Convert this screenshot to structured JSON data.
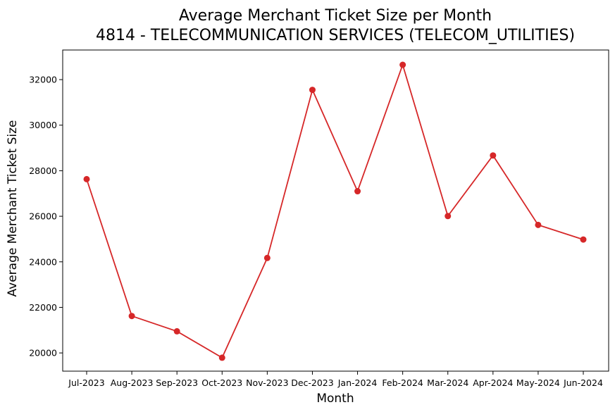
{
  "chart_data": {
    "type": "line",
    "title_line1": "Average Merchant Ticket Size per Month",
    "title_line2": "4814 - TELECOMMUNICATION SERVICES (TELECOM_UTILITIES)",
    "xlabel": "Month",
    "ylabel": "Average Merchant Ticket Size",
    "categories": [
      "Jul-2023",
      "Aug-2023",
      "Sep-2023",
      "Oct-2023",
      "Nov-2023",
      "Dec-2023",
      "Jan-2024",
      "Feb-2024",
      "Mar-2024",
      "Apr-2024",
      "May-2024",
      "Jun-2024"
    ],
    "series": [
      {
        "values": [
          27630,
          21620,
          20950,
          19790,
          24170,
          31550,
          27100,
          32650,
          26010,
          28670,
          25620,
          24980
        ],
        "color": "#d62728"
      }
    ],
    "ylim": [
      19200,
      33300
    ],
    "yticks": [
      20000,
      22000,
      24000,
      26000,
      28000,
      30000,
      32000
    ],
    "grid": false,
    "legend": "none"
  }
}
